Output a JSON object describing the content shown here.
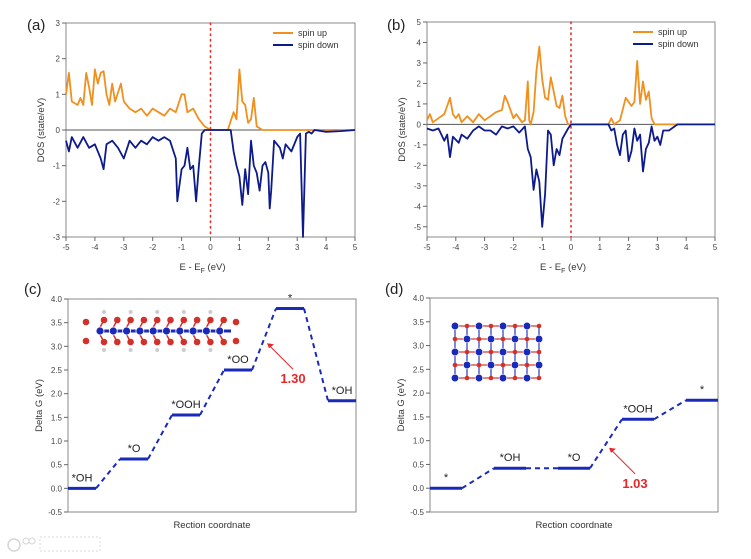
{
  "colors": {
    "spin_up": "#f0901e",
    "spin_down": "#0d1a8c",
    "fermi": "#e0302a",
    "level": "#1a2ab8",
    "annotation": "#e8262a",
    "zero_line": "#555555"
  },
  "watermark": "大数跨境",
  "chart_data": [
    {
      "panel": "(a)",
      "type": "line",
      "xlabel": "E - E",
      "xlabel_sub": "F",
      "xlabel_unit": " (eV)",
      "ylabel": "DOS (state/eV)",
      "xlim": [
        -5,
        5
      ],
      "ylim": [
        -3,
        3
      ],
      "xticks": [
        -5,
        -4,
        -3,
        -2,
        -1,
        0,
        1,
        2,
        3,
        4,
        5
      ],
      "yticks": [
        -3,
        -2,
        -1,
        0,
        1,
        2,
        3
      ],
      "fermi_level": 0,
      "legend_position": "top-right",
      "series": [
        {
          "name": "spin up",
          "color_key": "spin_up",
          "points": [
            [
              -5,
              1.0
            ],
            [
              -4.9,
              1.6
            ],
            [
              -4.8,
              0.8
            ],
            [
              -4.6,
              0.7
            ],
            [
              -4.5,
              0.9
            ],
            [
              -4.4,
              0.7
            ],
            [
              -4.3,
              1.6
            ],
            [
              -4.2,
              1.2
            ],
            [
              -4.1,
              0.7
            ],
            [
              -4.0,
              1.7
            ],
            [
              -3.9,
              1.3
            ],
            [
              -3.8,
              1.6
            ],
            [
              -3.7,
              1.65
            ],
            [
              -3.6,
              1.0
            ],
            [
              -3.5,
              0.7
            ],
            [
              -3.4,
              1.3
            ],
            [
              -3.3,
              0.8
            ],
            [
              -3.1,
              1.3
            ],
            [
              -3.0,
              0.8
            ],
            [
              -2.8,
              0.6
            ],
            [
              -2.6,
              0.5
            ],
            [
              -2.4,
              0.6
            ],
            [
              -2.2,
              0.4
            ],
            [
              -2.0,
              0.6
            ],
            [
              -1.8,
              0.5
            ],
            [
              -1.6,
              0.4
            ],
            [
              -1.4,
              0.6
            ],
            [
              -1.2,
              0.5
            ],
            [
              -1.0,
              1.0
            ],
            [
              -0.9,
              1.0
            ],
            [
              -0.8,
              0.5
            ],
            [
              -0.6,
              0.6
            ],
            [
              -0.4,
              0.3
            ],
            [
              -0.2,
              0.1
            ],
            [
              0,
              0
            ],
            [
              0.6,
              0
            ],
            [
              0.8,
              0.5
            ],
            [
              0.9,
              0.3
            ],
            [
              1.0,
              1.7
            ],
            [
              1.1,
              0.8
            ],
            [
              1.2,
              0.7
            ],
            [
              1.3,
              0.2
            ],
            [
              1.4,
              0.3
            ],
            [
              1.5,
              0.9
            ],
            [
              1.6,
              0.1
            ],
            [
              1.8,
              0
            ],
            [
              5,
              0
            ]
          ]
        },
        {
          "name": "spin down",
          "color_key": "spin_down",
          "points": [
            [
              -5,
              -0.3
            ],
            [
              -4.9,
              -0.6
            ],
            [
              -4.8,
              -0.2
            ],
            [
              -4.6,
              -0.5
            ],
            [
              -4.4,
              -0.2
            ],
            [
              -4.2,
              -0.5
            ],
            [
              -4.0,
              -0.4
            ],
            [
              -3.8,
              -0.8
            ],
            [
              -3.7,
              -1.1
            ],
            [
              -3.6,
              -0.4
            ],
            [
              -3.4,
              -0.3
            ],
            [
              -3.2,
              -0.5
            ],
            [
              -3.0,
              -0.8
            ],
            [
              -2.8,
              -0.3
            ],
            [
              -2.6,
              -0.5
            ],
            [
              -2.4,
              -0.3
            ],
            [
              -2.2,
              -0.4
            ],
            [
              -2.0,
              -0.2
            ],
            [
              -1.8,
              -0.3
            ],
            [
              -1.6,
              -0.2
            ],
            [
              -1.4,
              -0.3
            ],
            [
              -1.2,
              -0.8
            ],
            [
              -1.15,
              -2.0
            ],
            [
              -1.0,
              -1.1
            ],
            [
              -0.9,
              -1.0
            ],
            [
              -0.8,
              -0.5
            ],
            [
              -0.7,
              -1.1
            ],
            [
              -0.6,
              -1.0
            ],
            [
              -0.5,
              -2.0
            ],
            [
              -0.4,
              -1.0
            ],
            [
              -0.3,
              -0.1
            ],
            [
              -0.2,
              0
            ],
            [
              0.7,
              0
            ],
            [
              0.8,
              -0.6
            ],
            [
              0.9,
              -1.0
            ],
            [
              1.0,
              -1.3
            ],
            [
              1.1,
              -2.1
            ],
            [
              1.2,
              -1.1
            ],
            [
              1.3,
              -1.8
            ],
            [
              1.4,
              -0.3
            ],
            [
              1.5,
              -1.0
            ],
            [
              1.6,
              -1.2
            ],
            [
              1.7,
              -1.7
            ],
            [
              1.8,
              -1.0
            ],
            [
              1.9,
              -0.9
            ],
            [
              2.0,
              -1.2
            ],
            [
              2.05,
              -2.2
            ],
            [
              2.1,
              -1.7
            ],
            [
              2.2,
              -0.3
            ],
            [
              2.4,
              -0.5
            ],
            [
              2.5,
              -0.8
            ],
            [
              2.6,
              -0.4
            ],
            [
              2.8,
              -0.6
            ],
            [
              3.0,
              -0.2
            ],
            [
              3.1,
              -0.1
            ],
            [
              3.2,
              -3.0
            ],
            [
              3.3,
              -0.1
            ],
            [
              3.4,
              -0.05
            ],
            [
              3.5,
              -0.1
            ],
            [
              3.6,
              0
            ],
            [
              4.0,
              -0.05
            ],
            [
              4.5,
              -0.03
            ],
            [
              5,
              0
            ]
          ]
        }
      ]
    },
    {
      "panel": "(b)",
      "type": "line",
      "xlabel": "E - E",
      "xlabel_sub": "F",
      "xlabel_unit": " (eV)",
      "ylabel": "DOS (state/eV)",
      "xlim": [
        -5,
        5
      ],
      "ylim": [
        -5.5,
        5
      ],
      "xticks": [
        -5,
        -4,
        -3,
        -2,
        -1,
        0,
        1,
        2,
        3,
        4,
        5
      ],
      "yticks": [
        -5,
        -4,
        -3,
        -2,
        -1,
        0,
        1,
        2,
        3,
        4,
        5
      ],
      "fermi_level": 0,
      "legend_position": "top-right",
      "series": [
        {
          "name": "spin up",
          "color_key": "spin_up",
          "points": [
            [
              -5,
              0.2
            ],
            [
              -4.9,
              0.5
            ],
            [
              -4.8,
              0.1
            ],
            [
              -4.6,
              0.3
            ],
            [
              -4.4,
              0.5
            ],
            [
              -4.3,
              0.9
            ],
            [
              -4.2,
              1.3
            ],
            [
              -4.1,
              0.5
            ],
            [
              -4.0,
              0.3
            ],
            [
              -3.9,
              0.5
            ],
            [
              -3.8,
              0.1
            ],
            [
              -3.6,
              0.4
            ],
            [
              -3.4,
              0.1
            ],
            [
              -3.2,
              0.5
            ],
            [
              -3.0,
              0.2
            ],
            [
              -2.8,
              0.4
            ],
            [
              -2.6,
              0.6
            ],
            [
              -2.4,
              0.7
            ],
            [
              -2.3,
              1.4
            ],
            [
              -2.2,
              1.1
            ],
            [
              -2.0,
              0.3
            ],
            [
              -1.9,
              0.5
            ],
            [
              -1.7,
              0.1
            ],
            [
              -1.6,
              0.2
            ],
            [
              -1.5,
              2.1
            ],
            [
              -1.45,
              0.2
            ],
            [
              -1.4,
              0
            ],
            [
              -1.3,
              0.6
            ],
            [
              -1.2,
              2.6
            ],
            [
              -1.1,
              3.8
            ],
            [
              -1.0,
              2.2
            ],
            [
              -0.9,
              1.3
            ],
            [
              -0.8,
              1.2
            ],
            [
              -0.7,
              2.3
            ],
            [
              -0.6,
              1.6
            ],
            [
              -0.5,
              0.9
            ],
            [
              -0.4,
              0.8
            ],
            [
              -0.3,
              1.4
            ],
            [
              -0.2,
              0.4
            ],
            [
              -0.1,
              0
            ],
            [
              1.3,
              0
            ],
            [
              1.4,
              0.3
            ],
            [
              1.5,
              0
            ],
            [
              1.7,
              0.2
            ],
            [
              1.9,
              1.3
            ],
            [
              2.1,
              0.9
            ],
            [
              2.2,
              1.1
            ],
            [
              2.3,
              3.1
            ],
            [
              2.4,
              1.0
            ],
            [
              2.5,
              2.1
            ],
            [
              2.6,
              1.2
            ],
            [
              2.7,
              1.6
            ],
            [
              2.8,
              0.3
            ],
            [
              2.9,
              0
            ],
            [
              5,
              0
            ]
          ]
        },
        {
          "name": "spin down",
          "color_key": "spin_down",
          "points": [
            [
              -5,
              -0.2
            ],
            [
              -4.8,
              -0.3
            ],
            [
              -4.6,
              -0.2
            ],
            [
              -4.4,
              -0.8
            ],
            [
              -4.3,
              -0.5
            ],
            [
              -4.2,
              -1.6
            ],
            [
              -4.1,
              -0.6
            ],
            [
              -3.9,
              -0.9
            ],
            [
              -3.8,
              -0.5
            ],
            [
              -3.6,
              -0.7
            ],
            [
              -3.4,
              -0.3
            ],
            [
              -3.2,
              -0.1
            ],
            [
              -3.0,
              -0.3
            ],
            [
              -2.8,
              -0.3
            ],
            [
              -2.6,
              -0.5
            ],
            [
              -2.4,
              -0.1
            ],
            [
              -2.2,
              -0.2
            ],
            [
              -2.0,
              -0.1
            ],
            [
              -1.8,
              -0.4
            ],
            [
              -1.6,
              -0.1
            ],
            [
              -1.5,
              -1.2
            ],
            [
              -1.4,
              -1.6
            ],
            [
              -1.3,
              -3.2
            ],
            [
              -1.2,
              -2.2
            ],
            [
              -1.1,
              -2.8
            ],
            [
              -1.0,
              -5.0
            ],
            [
              -0.9,
              -3.4
            ],
            [
              -0.8,
              -0.3
            ],
            [
              -0.7,
              -0.5
            ],
            [
              -0.6,
              -2.0
            ],
            [
              -0.5,
              -1.2
            ],
            [
              -0.4,
              -1.5
            ],
            [
              -0.3,
              -0.7
            ],
            [
              -0.1,
              -0.2
            ],
            [
              0,
              0
            ],
            [
              1.3,
              0
            ],
            [
              1.4,
              -0.3
            ],
            [
              1.5,
              -0.2
            ],
            [
              1.6,
              -1.0
            ],
            [
              1.7,
              -1.5
            ],
            [
              1.8,
              -0.5
            ],
            [
              1.9,
              -0.3
            ],
            [
              2.0,
              -1.8
            ],
            [
              2.1,
              -1.3
            ],
            [
              2.2,
              -0.2
            ],
            [
              2.3,
              -0.8
            ],
            [
              2.4,
              -0.5
            ],
            [
              2.5,
              -2.3
            ],
            [
              2.6,
              -1.2
            ],
            [
              2.7,
              -0.9
            ],
            [
              2.8,
              -0.1
            ],
            [
              2.9,
              -0.8
            ],
            [
              3.0,
              -0.6
            ],
            [
              3.1,
              -1.0
            ],
            [
              3.2,
              -0.3
            ],
            [
              3.4,
              -0.3
            ],
            [
              3.6,
              -0.1
            ],
            [
              3.7,
              0
            ],
            [
              5,
              0
            ]
          ]
        }
      ]
    },
    {
      "panel": "(c)",
      "type": "line",
      "xlabel": "Rection coordnate",
      "ylabel": "Delta G (eV)",
      "ylim": [
        -0.5,
        4.0
      ],
      "yticks": [
        -0.5,
        0.0,
        0.5,
        1.0,
        1.5,
        2.0,
        2.5,
        3.0,
        3.5,
        4.0
      ],
      "levels": [
        {
          "label": "*OH",
          "value": 0.0
        },
        {
          "label": "*O",
          "value": 0.62
        },
        {
          "label": "*OOH",
          "value": 1.55
        },
        {
          "label": "*OO",
          "value": 2.5
        },
        {
          "label": "*",
          "value": 3.8
        },
        {
          "label": "*OH",
          "value": 1.85
        }
      ],
      "annotation": {
        "text": "1.30",
        "step_from": 3,
        "step_to": 4
      }
    },
    {
      "panel": "(d)",
      "type": "line",
      "xlabel": "Rection coordnate",
      "ylabel": "Delta G (eV)",
      "ylim": [
        -0.5,
        4.0
      ],
      "yticks": [
        -0.5,
        0.0,
        0.5,
        1.0,
        1.5,
        2.0,
        2.5,
        3.0,
        3.5,
        4.0
      ],
      "levels": [
        {
          "label": "*",
          "value": 0.0
        },
        {
          "label": "*OH",
          "value": 0.42
        },
        {
          "label": "*O",
          "value": 0.42
        },
        {
          "label": "*OOH",
          "value": 1.45
        },
        {
          "label": "*",
          "value": 1.85
        }
      ],
      "annotation": {
        "text": "1.03",
        "step_from": 2,
        "step_to": 3
      }
    }
  ]
}
